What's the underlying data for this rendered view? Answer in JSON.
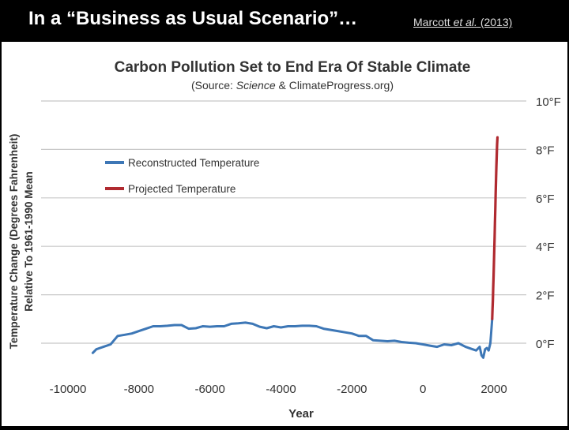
{
  "slide": {
    "title": "In a “Business as Usual Scenario”…",
    "citation_pre": "Marcott ",
    "citation_italic": "et al.",
    "citation_post": " (2013)"
  },
  "chart_data": {
    "type": "line",
    "title": "Carbon Pollution Set to End Era Of Stable Climate",
    "subtitle_pre": "(Source: ",
    "subtitle_italic": "Science",
    "subtitle_post": " & ClimateProgress.org)",
    "xlabel": "Year",
    "ylabel_line1": "Temperature Change (Degrees Fahrenheit)",
    "ylabel_line2": "Relative To 1961-1990 Mean",
    "xlim": [
      -10000,
      2000
    ],
    "ylim": [
      -1,
      10
    ],
    "grid": true,
    "legend_position": "top-left",
    "x_ticks": [
      -10000,
      -8000,
      -6000,
      -4000,
      -2000,
      0,
      2000
    ],
    "x_tick_labels": [
      "-10000",
      "-8000",
      "-6000",
      "-4000",
      "-2000",
      "0",
      "2000"
    ],
    "y_ticks": [
      0,
      2,
      4,
      6,
      8,
      10
    ],
    "y_tick_labels": [
      "0°F",
      "2°F",
      "4°F",
      "6°F",
      "8°F",
      "10°F"
    ],
    "series": [
      {
        "name": "Reconstructed Temperature",
        "color": "#3d77b6",
        "x": [
          -9300,
          -9200,
          -9000,
          -8800,
          -8600,
          -8400,
          -8200,
          -8000,
          -7800,
          -7600,
          -7400,
          -7200,
          -7000,
          -6800,
          -6600,
          -6400,
          -6200,
          -6000,
          -5800,
          -5600,
          -5400,
          -5200,
          -5000,
          -4800,
          -4600,
          -4400,
          -4200,
          -4000,
          -3800,
          -3600,
          -3400,
          -3200,
          -3000,
          -2800,
          -2600,
          -2400,
          -2200,
          -2000,
          -1800,
          -1600,
          -1400,
          -1200,
          -1000,
          -800,
          -600,
          -400,
          -200,
          0,
          200,
          400,
          600,
          800,
          1000,
          1200,
          1400,
          1500,
          1600,
          1650,
          1700,
          1750,
          1800,
          1850,
          1900,
          1950
        ],
        "y": [
          -0.4,
          -0.25,
          -0.15,
          -0.05,
          0.3,
          0.35,
          0.4,
          0.5,
          0.6,
          0.7,
          0.7,
          0.72,
          0.75,
          0.75,
          0.6,
          0.62,
          0.7,
          0.68,
          0.7,
          0.7,
          0.8,
          0.82,
          0.85,
          0.8,
          0.68,
          0.62,
          0.7,
          0.65,
          0.7,
          0.7,
          0.72,
          0.72,
          0.7,
          0.6,
          0.55,
          0.5,
          0.45,
          0.4,
          0.3,
          0.3,
          0.12,
          0.1,
          0.08,
          0.1,
          0.05,
          0.02,
          0.0,
          -0.05,
          -0.1,
          -0.15,
          -0.05,
          -0.08,
          0.0,
          -0.15,
          -0.25,
          -0.3,
          -0.15,
          -0.5,
          -0.6,
          -0.25,
          -0.2,
          -0.3,
          0.0,
          1.0
        ]
      },
      {
        "name": "Projected Temperature",
        "color": "#b02a30",
        "x": [
          1950,
          1960,
          1970,
          1980,
          1990,
          2000,
          2010,
          2020,
          2030,
          2040,
          2050,
          2060,
          2070,
          2080,
          2090,
          2100
        ],
        "y": [
          1.0,
          1.4,
          1.8,
          2.3,
          2.8,
          3.3,
          3.8,
          4.4,
          5.0,
          5.6,
          6.2,
          6.8,
          7.3,
          7.8,
          8.2,
          8.5
        ]
      }
    ]
  }
}
